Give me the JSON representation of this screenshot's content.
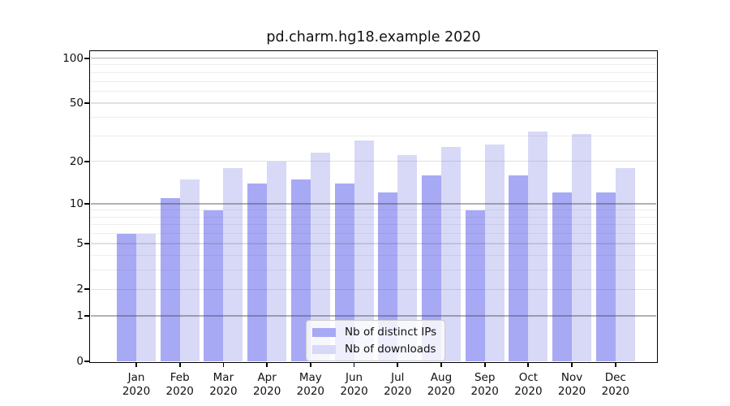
{
  "title": "pd.charm.hg18.example 2020",
  "chart_data": {
    "type": "bar",
    "title": "pd.charm.hg18.example 2020",
    "categories": [
      "Jan",
      "Feb",
      "Mar",
      "Apr",
      "May",
      "Jun",
      "Jul",
      "Aug",
      "Sep",
      "Oct",
      "Nov",
      "Dec"
    ],
    "year_label": "2020",
    "series": [
      {
        "name": "Nb of distinct IPs",
        "color": "#a8a9f4",
        "values": [
          6,
          11,
          9,
          14,
          15,
          14,
          12,
          16,
          9,
          16,
          12,
          12
        ]
      },
      {
        "name": "Nb of downloads",
        "color": "#d8d9f7",
        "values": [
          6,
          15,
          18,
          20,
          23,
          28,
          22,
          25,
          26,
          32,
          31,
          18
        ]
      }
    ],
    "yscale": "log1p",
    "ylim": [
      0,
      110
    ],
    "y_ticks": [
      100,
      50,
      20,
      10,
      5,
      2,
      1,
      0
    ],
    "y_gridlines_major": [
      1,
      10,
      100
    ],
    "y_gridlines_mid": [
      2,
      5,
      20,
      50
    ],
    "y_gridlines_minor": [
      3,
      4,
      6,
      7,
      8,
      9,
      30,
      40,
      60,
      70,
      80,
      90
    ],
    "grid": "horizontal",
    "legend_position": "bottom-center",
    "background_color": "#ffffff",
    "spine_color": "#000000",
    "text_color": "#111111"
  }
}
